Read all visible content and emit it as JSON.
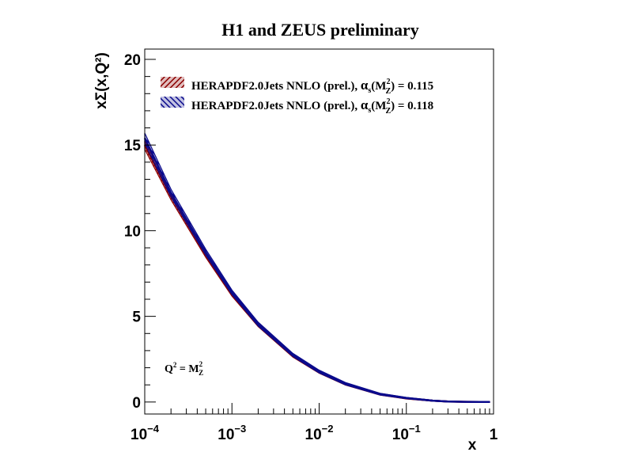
{
  "chart_data": {
    "type": "line",
    "title": "H1 and ZEUS preliminary",
    "xlabel": "x",
    "ylabel": "xΣ(x,Q²)",
    "x_scale": "log",
    "xlim": [
      0.0001,
      1
    ],
    "ylim": [
      -0.7,
      20.6
    ],
    "x_ticks": [
      {
        "value": 0.0001,
        "base": "10",
        "exp": "−4"
      },
      {
        "value": 0.001,
        "base": "10",
        "exp": "−3"
      },
      {
        "value": 0.01,
        "base": "10",
        "exp": "−2"
      },
      {
        "value": 0.1,
        "base": "10",
        "exp": "−1"
      },
      {
        "value": 1,
        "base": "1",
        "exp": ""
      }
    ],
    "y_ticks": [
      0,
      5,
      10,
      15,
      20
    ],
    "y_tick_labels": [
      "0",
      "5",
      "10",
      "15",
      "20"
    ],
    "annotation": {
      "q": "Q",
      "q_exp": "2",
      "eq": " = M",
      "m_sup": "2",
      "m_sub": "Z"
    },
    "x": [
      0.0001,
      0.0002,
      0.0005,
      0.001,
      0.002,
      0.005,
      0.01,
      0.02,
      0.05,
      0.1,
      0.2,
      0.3,
      0.5,
      0.7,
      0.9
    ],
    "series": [
      {
        "name": "HERAPDF2.0Jets NNLO (prel.), αs(M²Z) = 0.115",
        "legend": {
          "prefix": "HERAPDF2.0Jets NNLO (prel.), ",
          "alpha": "α",
          "alpha_sub": "s",
          "paren_open": "(M",
          "m_sup": "2",
          "m_sub": "Z",
          "rest": ") = 0.115"
        },
        "color": "#8b0000",
        "hatch": "diagonal-up",
        "values": [
          15.0,
          12.0,
          8.6,
          6.3,
          4.5,
          2.7,
          1.75,
          1.05,
          0.45,
          0.22,
          0.08,
          0.03,
          0.01,
          0.0,
          0.0
        ],
        "band_half_width": [
          0.25,
          0.2,
          0.15,
          0.12,
          0.1,
          0.08,
          0.07,
          0.06,
          0.05,
          0.04,
          0.03,
          0.03,
          0.02,
          0.02,
          0.02
        ]
      },
      {
        "name": "HERAPDF2.0Jets NNLO (prel.), αs(M²Z) = 0.118",
        "legend": {
          "prefix": "HERAPDF2.0Jets NNLO (prel.), ",
          "alpha": "α",
          "alpha_sub": "s",
          "paren_open": "(M",
          "m_sup": "2",
          "m_sub": "Z",
          "rest": ") = 0.118"
        },
        "color": "#0a0a8c",
        "hatch": "diagonal-down",
        "values": [
          15.4,
          12.2,
          8.75,
          6.4,
          4.55,
          2.75,
          1.78,
          1.07,
          0.46,
          0.23,
          0.08,
          0.03,
          0.01,
          0.0,
          0.0
        ],
        "band_half_width": [
          0.3,
          0.22,
          0.17,
          0.13,
          0.11,
          0.09,
          0.08,
          0.07,
          0.05,
          0.04,
          0.03,
          0.03,
          0.02,
          0.02,
          0.02
        ]
      }
    ]
  }
}
